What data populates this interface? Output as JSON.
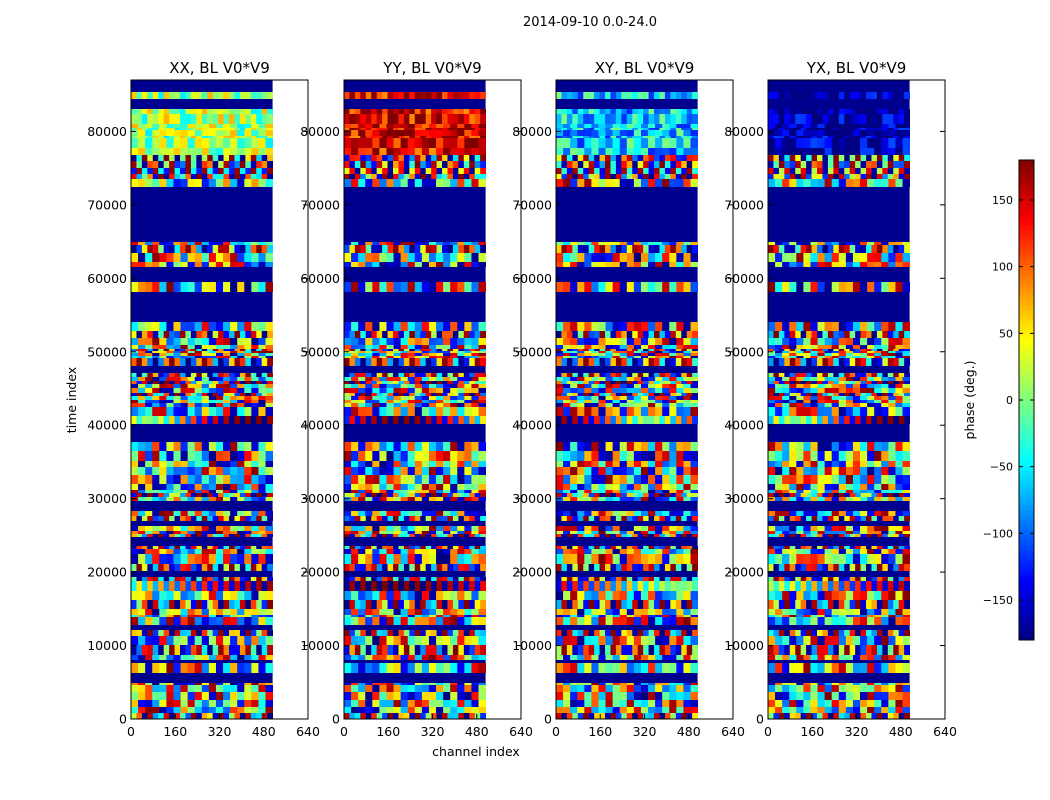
{
  "chart_data": {
    "type": "heatmap",
    "suptitle": "2014-09-10 0.0-24.0",
    "xlabel": "channel index",
    "ylabel": "time index",
    "xlim": [
      0,
      640
    ],
    "ylim": [
      0,
      87000
    ],
    "data_xmax": 512,
    "x_ticks": [
      0,
      160,
      320,
      480,
      640
    ],
    "y_ticks": [
      0,
      10000,
      20000,
      30000,
      40000,
      50000,
      60000,
      70000,
      80000
    ],
    "colormap": "jet",
    "colorbar": {
      "label": "phase (deg.)",
      "range": [
        -180,
        180
      ],
      "ticks": [
        150,
        100,
        50,
        0,
        -50,
        -100,
        -150
      ],
      "tick_labels": [
        "150",
        "100",
        "50",
        "0",
        "−50",
        "−100",
        "−150"
      ]
    },
    "masked_time_ranges": [
      [
        54000,
        58500
      ],
      [
        65000,
        72000
      ]
    ],
    "panels": [
      {
        "title": "XX, BL V0*V9",
        "late_bias_deg": 10
      },
      {
        "title": "YY, BL V0*V9",
        "late_bias_deg": 145
      },
      {
        "title": "XY, BL V0*V9",
        "late_bias_deg": -60
      },
      {
        "title": "YX, BL V0*V9",
        "late_bias_deg": -170
      }
    ]
  }
}
